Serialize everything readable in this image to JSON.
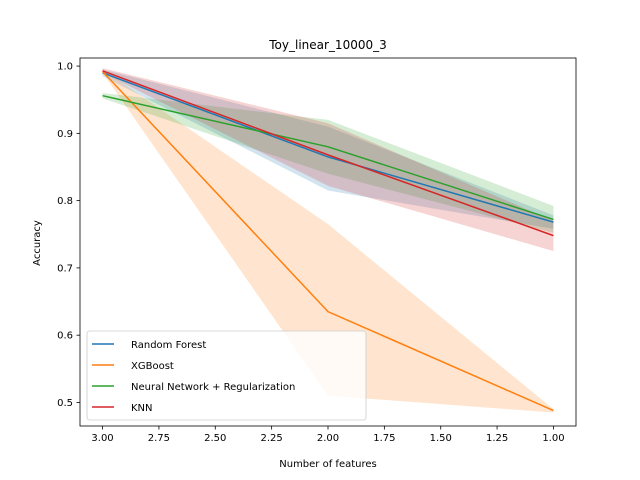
{
  "chart_data": {
    "type": "line",
    "title": "Toy_linear_10000_3",
    "xlabel": "Number of features",
    "ylabel": "Accuracy",
    "x": [
      3,
      2,
      1
    ],
    "xlim": [
      3.1,
      0.9
    ],
    "ylim": [
      0.465,
      1.012
    ],
    "x_inverted": true,
    "grid": false,
    "legend": "lower-left",
    "xticks": [
      3.0,
      2.75,
      2.5,
      2.25,
      2.0,
      1.75,
      1.5,
      1.25,
      1.0
    ],
    "xtick_labels": [
      "3.00",
      "2.75",
      "2.50",
      "2.25",
      "2.00",
      "1.75",
      "1.50",
      "1.25",
      "1.00"
    ],
    "yticks": [
      0.5,
      0.6,
      0.7,
      0.8,
      0.9,
      1.0
    ],
    "ytick_labels": [
      "0.5",
      "0.6",
      "0.7",
      "0.8",
      "0.9",
      "1.0"
    ],
    "series": [
      {
        "name": "Random Forest",
        "color": "#1f77b4",
        "values": [
          0.99,
          0.865,
          0.768
        ],
        "lower": [
          0.985,
          0.815,
          0.758
        ],
        "upper": [
          0.995,
          0.91,
          0.778
        ]
      },
      {
        "name": "XGBoost",
        "color": "#ff7f0e",
        "values": [
          0.992,
          0.635,
          0.488
        ],
        "lower": [
          0.99,
          0.51,
          0.485
        ],
        "upper": [
          0.995,
          0.765,
          0.49
        ]
      },
      {
        "name": "Neural Network + Regularization",
        "color": "#2ca02c",
        "values": [
          0.956,
          0.88,
          0.772
        ],
        "lower": [
          0.952,
          0.84,
          0.752
        ],
        "upper": [
          0.96,
          0.92,
          0.792
        ]
      },
      {
        "name": "KNN",
        "color": "#d62728",
        "values": [
          0.993,
          0.868,
          0.748
        ],
        "lower": [
          0.99,
          0.822,
          0.725
        ],
        "upper": [
          0.997,
          0.915,
          0.77
        ]
      }
    ]
  }
}
